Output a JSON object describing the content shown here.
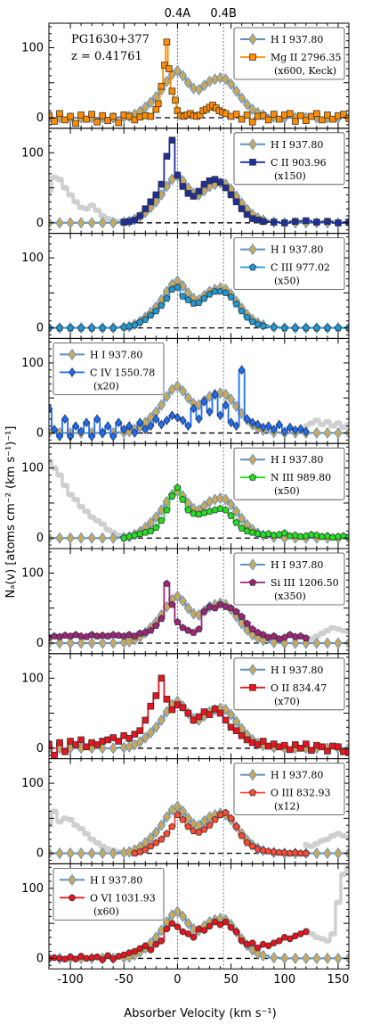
{
  "chart_data": {
    "type": "line",
    "target": "PG1630+377",
    "redshift": "z = 0.41761",
    "component_labels": [
      {
        "label": "0.4A",
        "x": 0
      },
      {
        "label": "0.4B",
        "x": 43
      }
    ],
    "xlabel": "Absorber Velocity (km s⁻¹)",
    "ylabel": "Nₐ(v) [atoms cm⁻² (km s⁻¹)⁻¹]",
    "xlim": [
      -120,
      160
    ],
    "ylim": [
      -15,
      135
    ],
    "xticks": [
      -100,
      -50,
      0,
      50,
      100,
      150
    ],
    "yticks": [
      0,
      100
    ],
    "reference": {
      "name": "H I 937.80",
      "color": "#5b8fc9",
      "marker_color": "#c9a85a",
      "x": [
        -120,
        -110,
        -100,
        -90,
        -80,
        -70,
        -60,
        -50,
        -45,
        -40,
        -35,
        -30,
        -25,
        -20,
        -15,
        -10,
        -5,
        0,
        5,
        10,
        15,
        20,
        25,
        30,
        35,
        40,
        45,
        50,
        55,
        60,
        65,
        70,
        75,
        80,
        90,
        100,
        110,
        120,
        130,
        140,
        150,
        160
      ],
      "values": [
        0,
        0,
        0,
        0,
        0,
        0,
        0,
        1,
        2,
        5,
        9,
        15,
        22,
        30,
        40,
        52,
        62,
        67,
        60,
        50,
        42,
        40,
        46,
        52,
        55,
        57,
        55,
        48,
        38,
        28,
        19,
        12,
        7,
        4,
        1,
        0,
        0,
        0,
        0,
        0,
        0,
        0
      ]
    },
    "panels": [
      {
        "ion": "Mg II 2796.35",
        "scale": "(x600, Keck)",
        "color": "#ff8c00",
        "marker": "square",
        "legend_pos": "top-right",
        "x": [
          -120,
          -115,
          -110,
          -105,
          -100,
          -95,
          -90,
          -85,
          -80,
          -75,
          -70,
          -65,
          -60,
          -55,
          -50,
          -45,
          -40,
          -35,
          -30,
          -25,
          -20,
          -18,
          -15,
          -12,
          -10,
          -8,
          -5,
          -2,
          0,
          3,
          6,
          9,
          12,
          15,
          18,
          21,
          24,
          27,
          30,
          33,
          36,
          39,
          42,
          45,
          50,
          55,
          60,
          65,
          70,
          75,
          80,
          85,
          90,
          95,
          100,
          105,
          110,
          115,
          120,
          125,
          130,
          135,
          140,
          145,
          150,
          155,
          160
        ],
        "values": [
          3,
          -5,
          6,
          -3,
          2,
          -8,
          4,
          -2,
          5,
          -6,
          3,
          -4,
          2,
          -7,
          4,
          2,
          -3,
          1,
          3,
          2,
          12,
          20,
          45,
          75,
          108,
          70,
          38,
          25,
          10,
          3,
          2,
          4,
          6,
          3,
          2,
          4,
          10,
          12,
          15,
          18,
          14,
          10,
          8,
          6,
          2,
          5,
          -2,
          4,
          -6,
          2,
          3,
          -3,
          5,
          -2,
          4,
          6,
          -5,
          3,
          -4,
          2,
          6,
          -3,
          4,
          -2,
          3,
          5,
          -1
        ]
      },
      {
        "ion": "C II 903.96",
        "scale": "(x150)",
        "color": "#1f2f9a",
        "marker": "square",
        "legend_pos": "top-right",
        "grey_x": [
          -120,
          -115,
          -110,
          -105,
          -100,
          -95,
          -90,
          -85,
          -80,
          -75,
          -70,
          -65,
          -60,
          -55,
          -50
        ],
        "grey_values": [
          45,
          65,
          62,
          50,
          40,
          30,
          22,
          20,
          25,
          18,
          10,
          6,
          3,
          2,
          1
        ],
        "x": [
          -50,
          -45,
          -40,
          -35,
          -30,
          -25,
          -20,
          -15,
          -10,
          -5,
          0,
          5,
          10,
          15,
          20,
          25,
          30,
          35,
          40,
          45,
          50,
          55,
          60,
          65,
          70,
          75,
          80,
          90,
          100,
          110,
          120,
          130,
          140,
          150,
          160
        ],
        "values": [
          1,
          2,
          4,
          10,
          20,
          30,
          40,
          55,
          95,
          118,
          68,
          52,
          42,
          38,
          45,
          55,
          60,
          62,
          58,
          50,
          40,
          30,
          20,
          12,
          6,
          4,
          2,
          1,
          0,
          2,
          3,
          1,
          2,
          0,
          1
        ]
      },
      {
        "ion": "C III 977.02",
        "scale": "(x50)",
        "color": "#1e9ad6",
        "marker": "pentagon",
        "legend_pos": "top-right",
        "x": [
          -120,
          -110,
          -100,
          -90,
          -80,
          -70,
          -60,
          -50,
          -45,
          -40,
          -35,
          -30,
          -25,
          -20,
          -15,
          -10,
          -5,
          0,
          5,
          10,
          15,
          20,
          25,
          30,
          35,
          40,
          45,
          50,
          55,
          60,
          65,
          70,
          75,
          80,
          90,
          100,
          110,
          120,
          130,
          140,
          150,
          160
        ],
        "values": [
          0,
          0,
          0,
          0,
          0,
          0,
          0,
          1,
          2,
          4,
          8,
          12,
          18,
          24,
          32,
          42,
          55,
          58,
          45,
          40,
          35,
          36,
          42,
          48,
          52,
          52,
          50,
          44,
          34,
          24,
          15,
          9,
          5,
          3,
          1,
          0,
          0,
          0,
          0,
          0,
          0,
          0
        ]
      },
      {
        "ion": "C IV 1550.78",
        "scale": "(x20)",
        "color": "#1a6dff",
        "marker": "diamond",
        "legend_pos": "top-left",
        "grey_x": [
          120,
          125,
          130,
          135,
          140,
          145,
          150,
          155,
          160
        ],
        "grey_values": [
          10,
          14,
          18,
          12,
          16,
          10,
          14,
          8,
          12
        ],
        "x": [
          -120,
          -115,
          -110,
          -105,
          -100,
          -95,
          -90,
          -85,
          -80,
          -75,
          -70,
          -65,
          -60,
          -55,
          -50,
          -45,
          -40,
          -35,
          -30,
          -25,
          -20,
          -15,
          -10,
          -5,
          0,
          5,
          10,
          15,
          20,
          25,
          30,
          35,
          40,
          45,
          50,
          55,
          60,
          65,
          70,
          75,
          80,
          85,
          90,
          95,
          100,
          105,
          110,
          115,
          120
        ],
        "values": [
          35,
          5,
          -5,
          20,
          -5,
          10,
          2,
          15,
          -5,
          20,
          0,
          10,
          -5,
          15,
          5,
          10,
          0,
          15,
          5,
          10,
          20,
          12,
          18,
          25,
          22,
          18,
          10,
          35,
          20,
          45,
          30,
          55,
          25,
          40,
          15,
          10,
          90,
          20,
          15,
          12,
          8,
          10,
          5,
          12,
          2,
          8,
          4,
          6,
          2
        ]
      },
      {
        "ion": "N III 989.80",
        "scale": "(x50)",
        "color": "#22e022",
        "marker": "pentagon",
        "legend_pos": "top-right",
        "grey_x": [
          -120,
          -115,
          -110,
          -105,
          -100,
          -95,
          -90,
          -85,
          -80,
          -75,
          -70,
          -65,
          -60,
          -55,
          -50
        ],
        "grey_values": [
          110,
          100,
          90,
          75,
          62,
          55,
          45,
          38,
          30,
          25,
          20,
          12,
          8,
          4,
          2
        ],
        "x": [
          -50,
          -45,
          -40,
          -35,
          -30,
          -25,
          -20,
          -15,
          -10,
          -5,
          0,
          5,
          10,
          15,
          20,
          25,
          30,
          35,
          40,
          45,
          50,
          55,
          60,
          65,
          70,
          75,
          80,
          85,
          90,
          95,
          100,
          105,
          110,
          115,
          120,
          125,
          130,
          135,
          140,
          145,
          150,
          155,
          160
        ],
        "values": [
          0,
          2,
          4,
          6,
          8,
          10,
          15,
          25,
          40,
          60,
          72,
          55,
          40,
          35,
          34,
          36,
          38,
          40,
          42,
          40,
          32,
          22,
          14,
          10,
          8,
          6,
          5,
          6,
          4,
          5,
          7,
          3,
          4,
          2,
          3,
          5,
          4,
          2,
          3,
          1,
          2,
          3,
          1
        ]
      },
      {
        "ion": "Si III 1206.50",
        "scale": "(x350)",
        "color": "#a0257a",
        "marker": "pentagon",
        "legend_pos": "top-right",
        "grey_x": [
          120,
          125,
          130,
          135,
          140,
          145,
          150,
          155,
          160
        ],
        "grey_values": [
          8,
          6,
          10,
          14,
          18,
          22,
          20,
          18,
          16
        ],
        "x": [
          -120,
          -115,
          -110,
          -105,
          -100,
          -95,
          -90,
          -85,
          -80,
          -75,
          -70,
          -65,
          -60,
          -55,
          -50,
          -45,
          -40,
          -35,
          -30,
          -25,
          -20,
          -15,
          -10,
          -5,
          0,
          5,
          10,
          15,
          20,
          25,
          30,
          35,
          40,
          45,
          50,
          55,
          60,
          65,
          70,
          75,
          80,
          85,
          90,
          95,
          100,
          105,
          110,
          115,
          120
        ],
        "values": [
          8,
          10,
          9,
          11,
          10,
          12,
          10,
          9,
          12,
          10,
          11,
          10,
          12,
          11,
          10,
          12,
          10,
          14,
          15,
          18,
          25,
          35,
          85,
          55,
          30,
          22,
          18,
          15,
          20,
          45,
          52,
          50,
          55,
          52,
          50,
          45,
          38,
          28,
          20,
          15,
          12,
          8,
          10,
          6,
          8,
          12,
          9,
          10,
          7
        ]
      },
      {
        "ion": "O II 834.47",
        "scale": "(x70)",
        "color": "#e8141e",
        "marker": "square",
        "legend_pos": "top-right",
        "x": [
          -120,
          -115,
          -110,
          -105,
          -100,
          -95,
          -90,
          -85,
          -80,
          -75,
          -70,
          -65,
          -60,
          -55,
          -50,
          -45,
          -40,
          -35,
          -30,
          -25,
          -20,
          -15,
          -10,
          -5,
          0,
          5,
          10,
          15,
          20,
          25,
          30,
          35,
          40,
          45,
          50,
          55,
          60,
          65,
          70,
          75,
          80,
          85,
          90,
          95,
          100,
          105,
          110,
          115,
          120,
          125,
          130,
          135,
          140,
          145,
          150,
          155,
          160
        ],
        "values": [
          5,
          -10,
          8,
          -5,
          10,
          5,
          12,
          2,
          8,
          5,
          10,
          12,
          15,
          10,
          18,
          14,
          20,
          25,
          40,
          60,
          75,
          100,
          70,
          55,
          62,
          58,
          50,
          40,
          45,
          52,
          48,
          56,
          50,
          40,
          30,
          25,
          18,
          12,
          8,
          5,
          10,
          3,
          6,
          2,
          4,
          -2,
          5,
          0,
          6,
          -3,
          4,
          2,
          -4,
          3,
          2,
          -5,
          -6
        ]
      },
      {
        "ion": "O III 832.93",
        "scale": "(x12)",
        "color": "#ff4a36",
        "marker": "pentagon",
        "legend_pos": "top-right",
        "grey_x": [
          -120,
          -115,
          -110,
          -105,
          -100,
          -95,
          -90,
          -85,
          -80,
          -75,
          -70,
          -65,
          -60,
          -55,
          -50,
          -45,
          -40
        ],
        "grey_values": [
          40,
          60,
          45,
          50,
          48,
          40,
          35,
          28,
          20,
          15,
          10,
          6,
          4,
          2,
          1,
          0,
          0
        ],
        "grey2_x": [
          120,
          125,
          130,
          135,
          140,
          145,
          150,
          155,
          160
        ],
        "grey2_values": [
          12,
          10,
          14,
          18,
          20,
          25,
          28,
          25,
          22
        ],
        "x": [
          -40,
          -35,
          -30,
          -25,
          -20,
          -15,
          -10,
          -5,
          0,
          5,
          10,
          15,
          20,
          25,
          30,
          35,
          40,
          45,
          50,
          55,
          60,
          65,
          70,
          75,
          80,
          85,
          90,
          95,
          100,
          105,
          110,
          115,
          120
        ],
        "values": [
          0,
          2,
          5,
          10,
          15,
          20,
          28,
          38,
          55,
          48,
          38,
          32,
          30,
          34,
          40,
          48,
          55,
          58,
          50,
          38,
          25,
          15,
          10,
          6,
          4,
          3,
          2,
          1,
          1,
          0,
          1,
          0,
          0
        ]
      },
      {
        "ion": "O VI 1031.93",
        "scale": "(x60)",
        "color": "#e8141e",
        "marker": "circle",
        "legend_pos": "top-left",
        "grey_x": [
          120,
          125,
          130,
          135,
          140,
          145,
          150,
          155,
          160
        ],
        "grey_values": [
          40,
          35,
          30,
          28,
          25,
          35,
          80,
          120,
          130
        ],
        "x": [
          -120,
          -115,
          -110,
          -105,
          -100,
          -95,
          -90,
          -85,
          -80,
          -75,
          -70,
          -65,
          -60,
          -55,
          -50,
          -45,
          -40,
          -35,
          -30,
          -25,
          -20,
          -15,
          -10,
          -5,
          0,
          5,
          10,
          15,
          20,
          25,
          30,
          35,
          40,
          45,
          50,
          55,
          60,
          65,
          70,
          75,
          80,
          85,
          90,
          95,
          100,
          105,
          110,
          115,
          120
        ],
        "values": [
          0,
          1,
          0,
          -1,
          2,
          -1,
          3,
          0,
          1,
          2,
          -2,
          4,
          -1,
          3,
          5,
          8,
          10,
          14,
          18,
          12,
          20,
          25,
          42,
          50,
          45,
          38,
          35,
          30,
          42,
          40,
          46,
          52,
          48,
          52,
          44,
          38,
          25,
          20,
          22,
          15,
          20,
          18,
          22,
          25,
          30,
          28,
          32,
          35,
          38
        ]
      }
    ]
  }
}
